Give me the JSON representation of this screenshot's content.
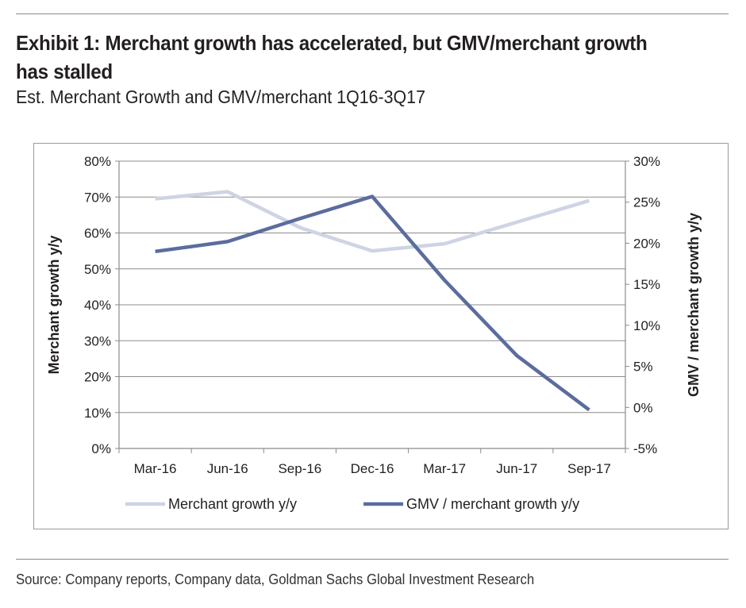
{
  "header": {
    "title": "Exhibit 1: Merchant growth has accelerated, but GMV/merchant growth has stalled",
    "subtitle": "Est. Merchant Growth and GMV/merchant 1Q16-3Q17"
  },
  "footer": {
    "source": "Source: Company reports, Company data, Goldman Sachs Global Investment Research"
  },
  "chart_data": {
    "type": "line",
    "categories": [
      "Mar-16",
      "Jun-16",
      "Sep-16",
      "Dec-16",
      "Mar-17",
      "Jun-17",
      "Sep-17"
    ],
    "ylabel": "Merchant growth y/y",
    "y2label": "GMV / merchant growth y/y",
    "ylim": [
      0,
      80
    ],
    "y2lim": [
      -5,
      30
    ],
    "yticks": [
      "0%",
      "10%",
      "20%",
      "30%",
      "40%",
      "50%",
      "60%",
      "70%",
      "80%"
    ],
    "y2ticks": [
      "-5%",
      "0%",
      "5%",
      "10%",
      "15%",
      "20%",
      "25%",
      "30%"
    ],
    "grid": true,
    "legend": "bottom",
    "series": [
      {
        "name": "Merchant growth y/y",
        "axis": "left",
        "color": "#ced4e4",
        "values": [
          69.5,
          71.5,
          61.5,
          55,
          57,
          63,
          69
        ]
      },
      {
        "name": "GMV / merchant growth y/y",
        "axis": "right",
        "color": "#5b6c9e",
        "values": [
          19,
          20.2,
          23,
          25.7,
          15.5,
          6.3,
          -0.3
        ]
      }
    ]
  }
}
